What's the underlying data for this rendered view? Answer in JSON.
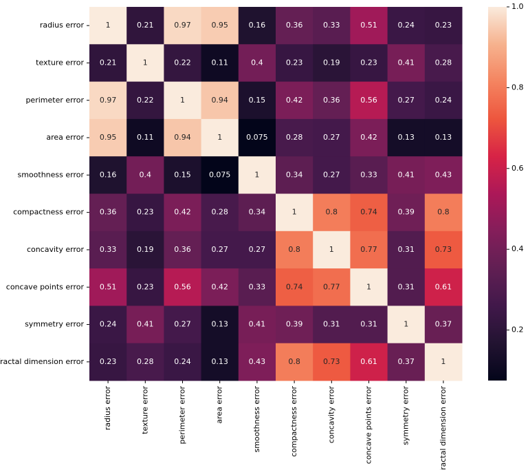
{
  "chart_data": {
    "type": "heatmap",
    "colormap": "rocket",
    "categories": [
      "radius error",
      "texture error",
      "perimeter error",
      "area error",
      "smoothness error",
      "compactness error",
      "concavity error",
      "concave points error",
      "symmetry error",
      "fractal dimension error"
    ],
    "row_categories": [
      "radius error",
      "texture error",
      "perimeter error",
      "area error",
      "smoothness error",
      "compactness error",
      "concavity error",
      "concave points error",
      "symmetry error",
      "fractal dimension error"
    ],
    "values": [
      [
        1,
        0.21,
        0.97,
        0.95,
        0.16,
        0.36,
        0.33,
        0.51,
        0.24,
        0.23
      ],
      [
        0.21,
        1,
        0.22,
        0.11,
        0.4,
        0.23,
        0.19,
        0.23,
        0.41,
        0.28
      ],
      [
        0.97,
        0.22,
        1,
        0.94,
        0.15,
        0.42,
        0.36,
        0.56,
        0.27,
        0.24
      ],
      [
        0.95,
        0.11,
        0.94,
        1,
        0.075,
        0.28,
        0.27,
        0.42,
        0.13,
        0.13
      ],
      [
        0.16,
        0.4,
        0.15,
        0.075,
        1,
        0.34,
        0.27,
        0.33,
        0.41,
        0.43
      ],
      [
        0.36,
        0.23,
        0.42,
        0.28,
        0.34,
        1,
        0.8,
        0.74,
        0.39,
        0.8
      ],
      [
        0.33,
        0.19,
        0.36,
        0.27,
        0.27,
        0.8,
        1,
        0.77,
        0.31,
        0.73
      ],
      [
        0.51,
        0.23,
        0.56,
        0.42,
        0.33,
        0.74,
        0.77,
        1,
        0.31,
        0.61
      ],
      [
        0.24,
        0.41,
        0.27,
        0.13,
        0.41,
        0.39,
        0.31,
        0.31,
        1,
        0.37
      ],
      [
        0.23,
        0.28,
        0.24,
        0.13,
        0.43,
        0.8,
        0.73,
        0.61,
        0.37,
        1
      ]
    ],
    "clim": [
      0.075,
      1
    ],
    "cticks": [
      0.2,
      0.4,
      0.6,
      0.8,
      {
        "value": 1,
        "label": "1.0"
      }
    ]
  }
}
